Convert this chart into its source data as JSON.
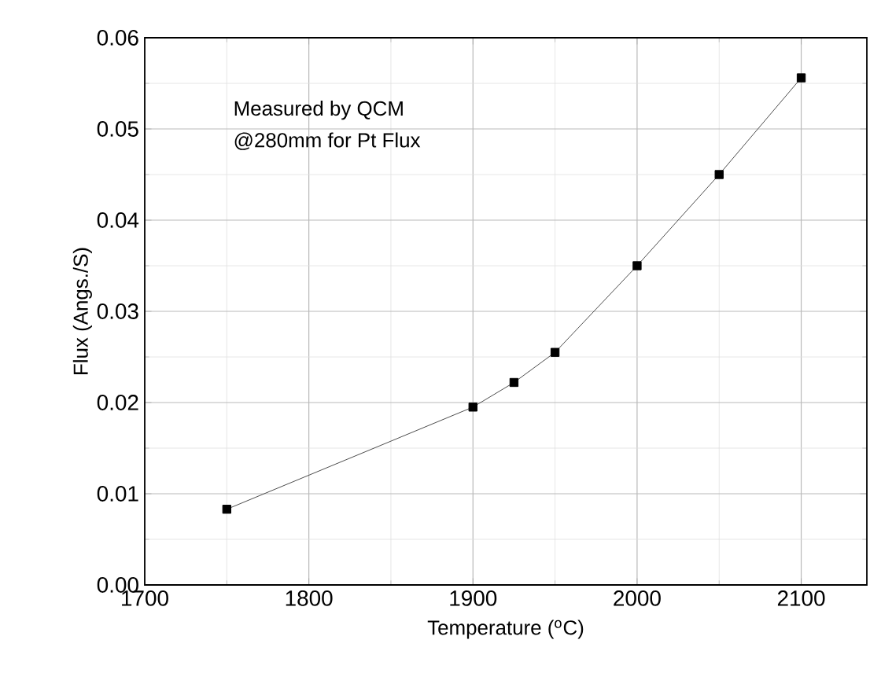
{
  "chart_data": {
    "type": "line",
    "xlabel": "Temperature ($^{o}$C)",
    "ylabel": "Flux (Angs./S)",
    "annotations": [
      "Measured by QCM",
      "@280mm for Pt Flux"
    ],
    "x": [
      1750,
      1900,
      1925,
      1950,
      2000,
      2050,
      2100
    ],
    "series": [
      {
        "color": "#000000",
        "values": [
          0.0083,
          0.0195,
          0.0222,
          0.0255,
          0.035,
          0.045,
          0.0556
        ]
      }
    ],
    "xlim": [
      1700,
      2140
    ],
    "xticks": [
      1700,
      1800,
      1900,
      2000,
      2100
    ],
    "ylim": [
      0,
      0.06
    ],
    "yticks": [
      {
        "value": 0,
        "label": "0.00"
      },
      0.01,
      0.02,
      0.03,
      0.04,
      0.05,
      0.06
    ],
    "grid": true,
    "marker": "square",
    "line_style": "solid"
  }
}
